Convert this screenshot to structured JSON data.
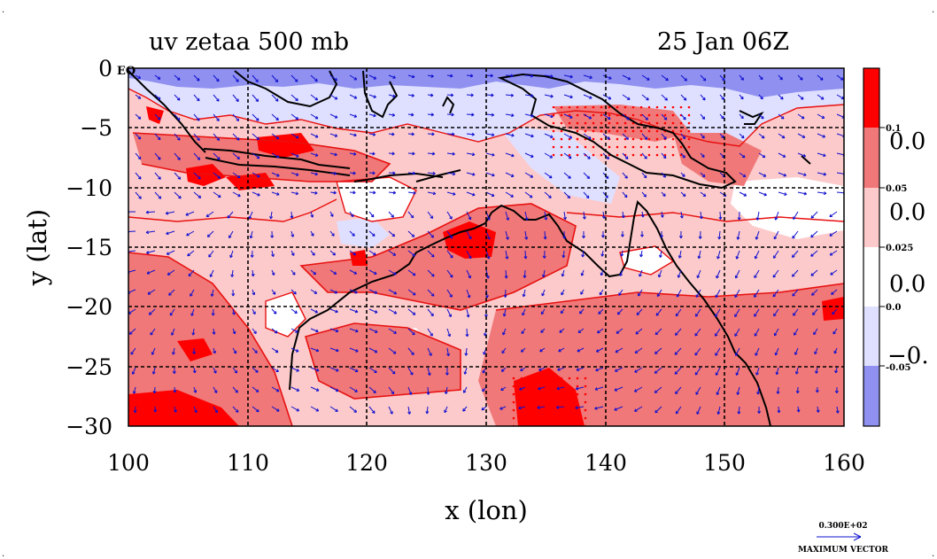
{
  "chart_data": {
    "type": "heatmap",
    "title": "uv zetaa 500 mb",
    "timestamp": "25 Jan 06Z",
    "xlabel": "x (lon)",
    "ylabel": "y (lat)",
    "xlim": [
      100,
      160
    ],
    "ylim": [
      -30,
      0
    ],
    "x_ticks": [
      100,
      110,
      120,
      130,
      140,
      150,
      160
    ],
    "y_ticks": [
      0,
      -5,
      -10,
      -15,
      -20,
      -25,
      -30
    ],
    "x_tick_labels": [
      "100",
      "110",
      "120",
      "130",
      "140",
      "150",
      "160"
    ],
    "y_tick_labels": [
      "0",
      "−5",
      "−10",
      "−15",
      "−20",
      "−25",
      "−30"
    ],
    "corner_label": "EQ",
    "grid": true,
    "grid_lon": [
      110,
      120,
      130,
      140,
      150
    ],
    "grid_lat": [
      -5,
      -10,
      -15,
      -20,
      -25
    ],
    "colorbar": {
      "levels": [
        0.1,
        0.05,
        0.025,
        0.0,
        -0.05
      ],
      "level_labels": [
        "0.1",
        "0.05",
        "0.025",
        "0.0",
        "-0.05"
      ],
      "big_labels": [
        "0.0",
        "0.0",
        "0.0",
        "−0."
      ],
      "colors": [
        "#ff0000",
        "#f07878",
        "#fccaca",
        "#ffffff",
        "#dfe0ff",
        "#8f90f0"
      ]
    },
    "vector_reference": {
      "value": "0.300E+02",
      "label": "MAXIMUM VECTOR"
    },
    "contour_color": "#e81010",
    "vector_color": "#1010d0",
    "coastline_color": "#000000"
  }
}
